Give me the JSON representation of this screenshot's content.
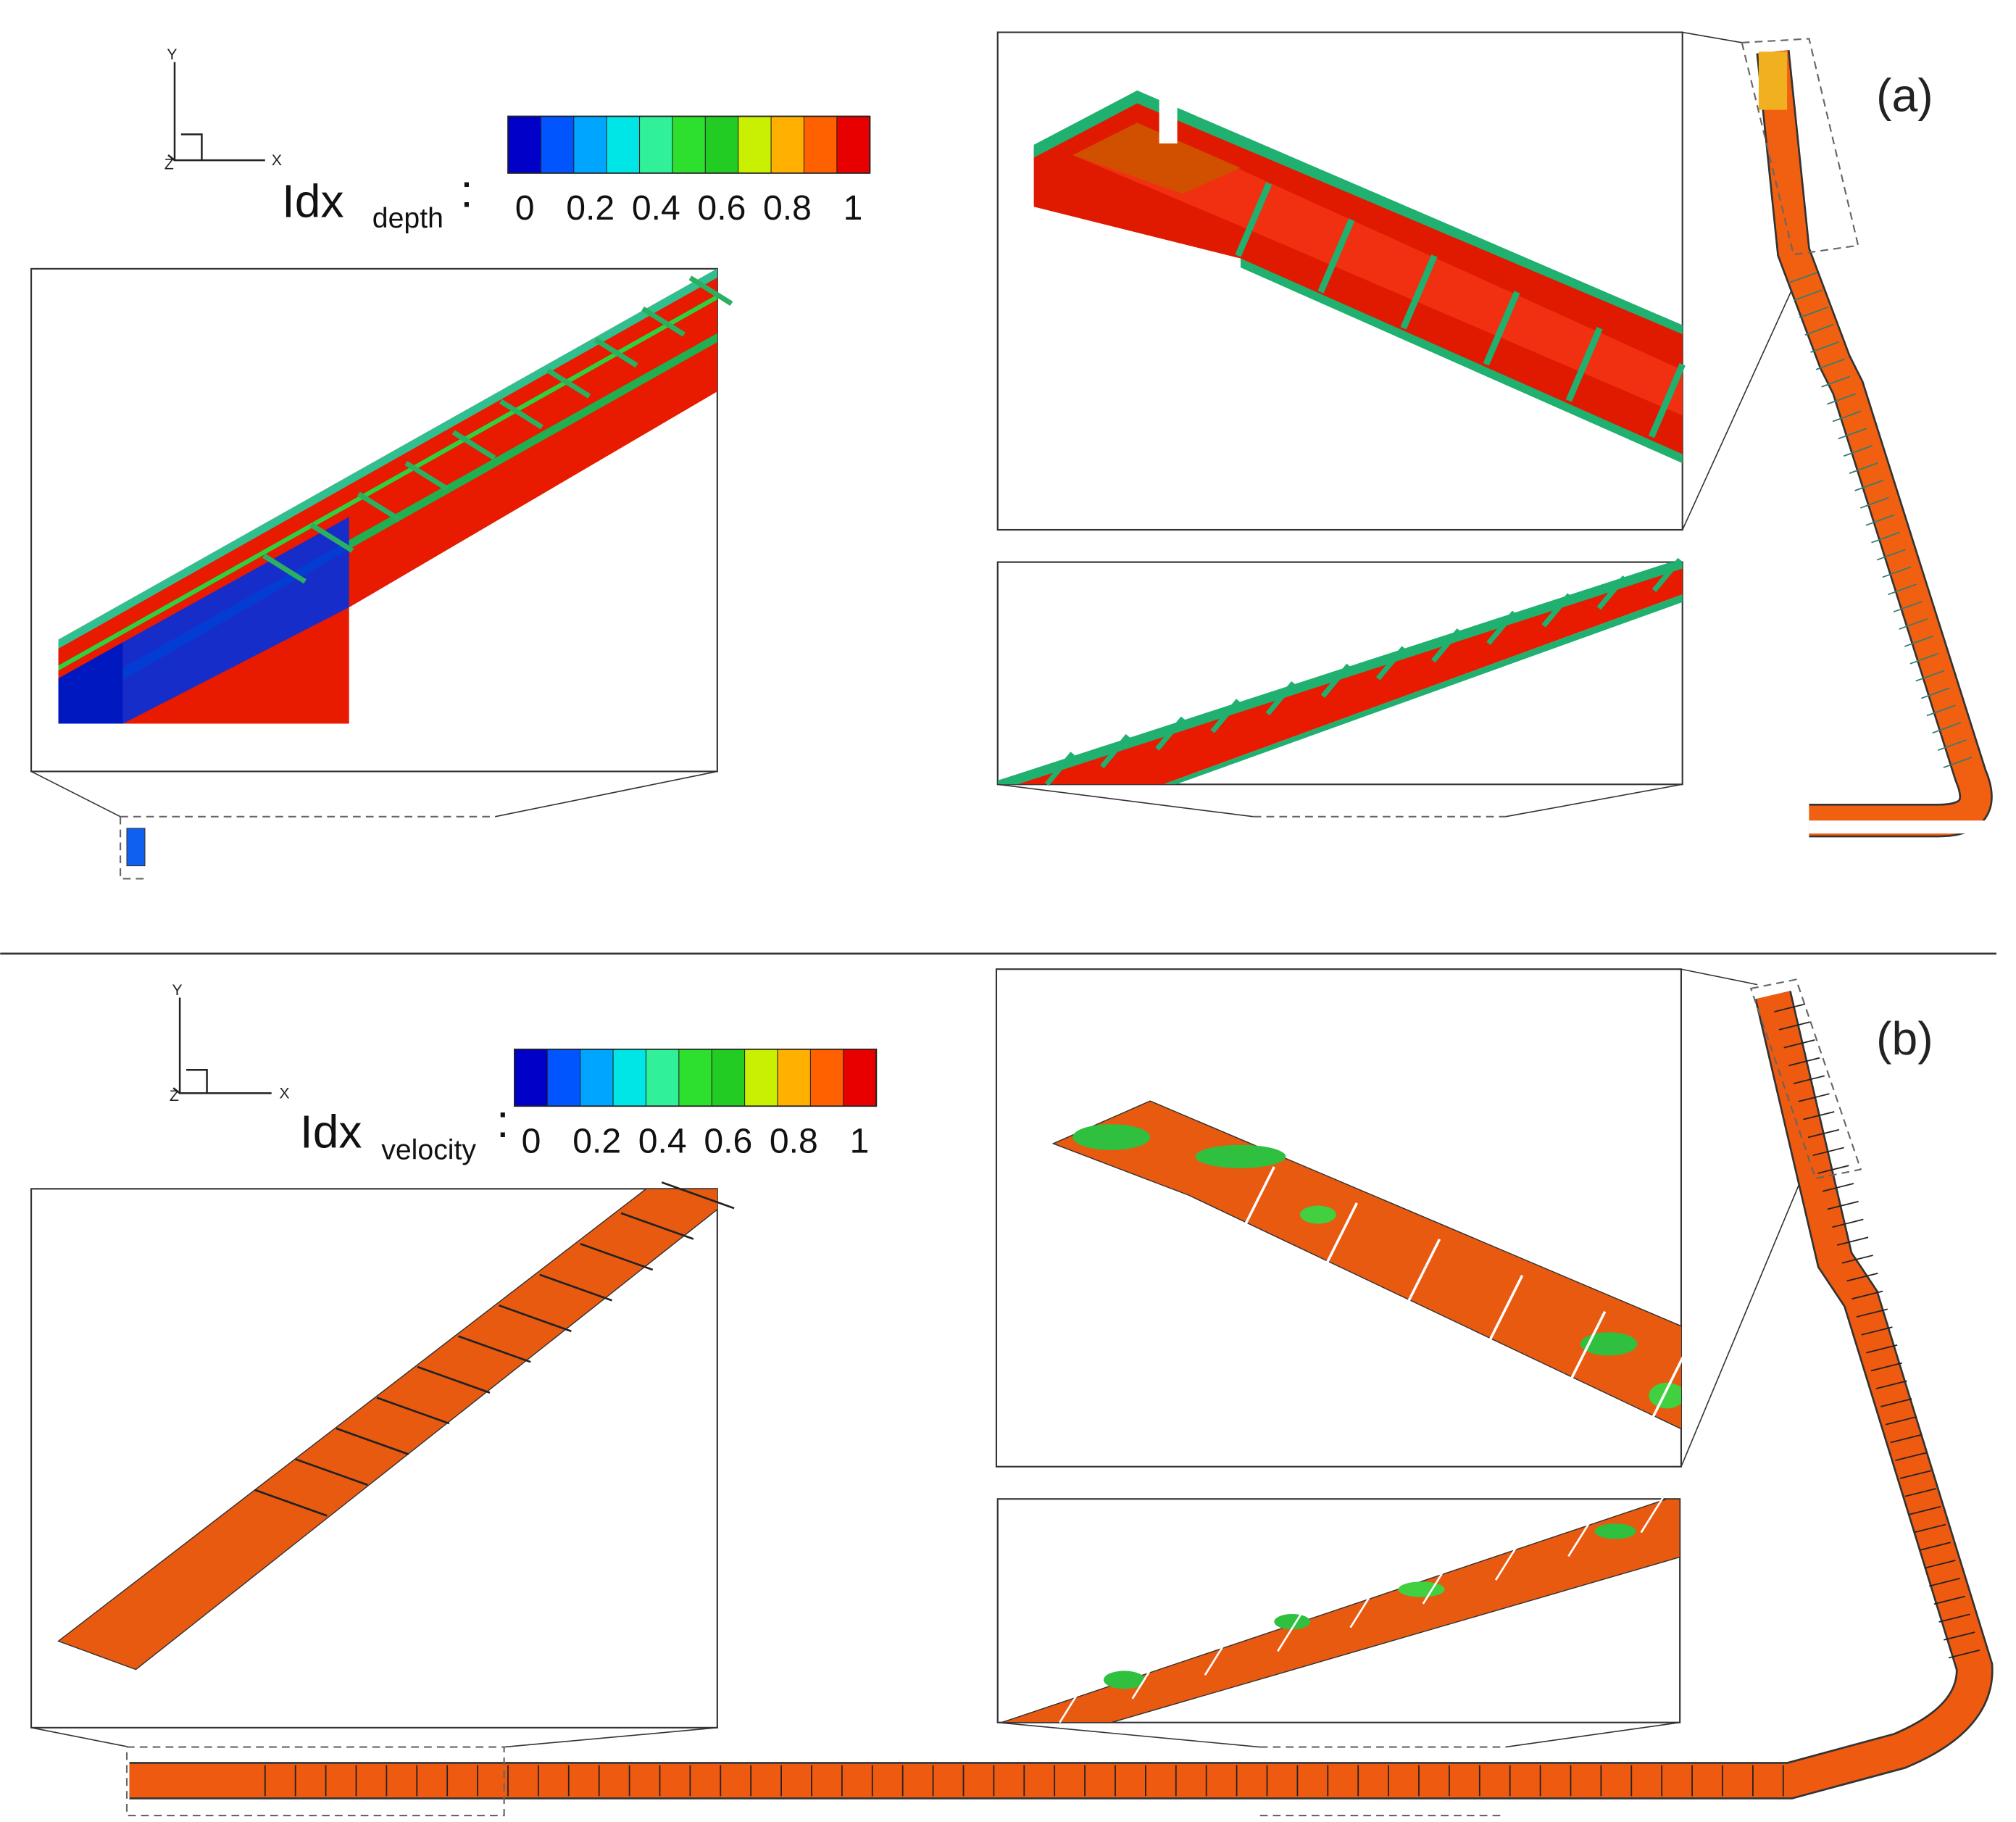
{
  "panels": [
    {
      "label": "(a)",
      "axes": {
        "y": "Y",
        "x": "X",
        "z": "Z"
      },
      "legend": {
        "title": "Idx",
        "subscript": "depth",
        "separator": ":",
        "ticks": [
          0,
          0.2,
          0.4,
          0.6,
          0.8,
          1
        ],
        "colors": [
          "#0000c8",
          "#0055ff",
          "#00a5ff",
          "#00e5e5",
          "#30f09a",
          "#2ee02e",
          "#22cc22",
          "#c8f000",
          "#ffb000",
          "#ff6000",
          "#e80000"
        ]
      }
    },
    {
      "label": "(b)",
      "axes": {
        "y": "Y",
        "x": "X",
        "z": "Z"
      },
      "legend": {
        "title": "Idx",
        "subscript": "velocity",
        "separator": ":",
        "ticks": [
          0,
          0.2,
          0.4,
          0.6,
          0.8,
          1
        ],
        "colors": [
          "#0000c8",
          "#0055ff",
          "#00a5ff",
          "#00e5e5",
          "#30f09a",
          "#2ee02e",
          "#22cc22",
          "#c8f000",
          "#ffb000",
          "#ff6000",
          "#e80000"
        ]
      }
    }
  ]
}
